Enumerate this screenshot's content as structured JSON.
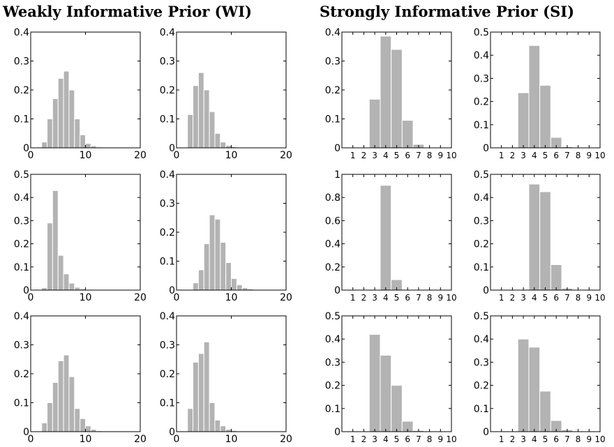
{
  "headings": {
    "weakly": "Weakly Informative Prior (WI)",
    "strongly": "Strongly Informative Prior (SI)"
  },
  "colors": {
    "bar": "#b3b3b3",
    "bar_edge": "#ffffff",
    "axis": "#000000",
    "background": "#ffffff"
  },
  "chart_data": [
    {
      "type": "bar",
      "group": "WI",
      "row": 1,
      "col": 1,
      "xlim": [
        0,
        20
      ],
      "xticks": [
        0,
        10,
        20
      ],
      "ylim": [
        0,
        0.4
      ],
      "yticks": [
        0,
        0.1,
        0.2,
        0.3,
        0.4
      ],
      "ytick_labels": [
        "0",
        "0.1",
        "0.2",
        "0.3",
        "0.4"
      ],
      "bin_edges": [
        2,
        3,
        4,
        5,
        6,
        7,
        8,
        9,
        10,
        11,
        12,
        13,
        14
      ],
      "values": [
        0.02,
        0.1,
        0.17,
        0.24,
        0.265,
        0.2,
        0.1,
        0.045,
        0.015,
        0.007,
        0.003,
        0.001
      ]
    },
    {
      "type": "bar",
      "group": "WI",
      "row": 1,
      "col": 2,
      "xlim": [
        0,
        20
      ],
      "xticks": [
        0,
        10,
        20
      ],
      "ylim": [
        0,
        0.4
      ],
      "yticks": [
        0,
        0.1,
        0.2,
        0.3,
        0.4
      ],
      "ytick_labels": [
        "0",
        "0.1",
        "0.2",
        "0.3",
        "0.4"
      ],
      "bin_edges": [
        2,
        3,
        4,
        5,
        6,
        7,
        8,
        9,
        10,
        11,
        12,
        13
      ],
      "values": [
        0.115,
        0.215,
        0.26,
        0.2,
        0.125,
        0.05,
        0.02,
        0.008,
        0.004,
        0.002,
        0.001
      ]
    },
    {
      "type": "bar",
      "group": "SI",
      "row": 1,
      "col": 3,
      "xlim": [
        0,
        10
      ],
      "xticks": [
        1,
        2,
        3,
        4,
        5,
        6,
        7,
        8,
        9,
        10
      ],
      "ylim": [
        0,
        0.4
      ],
      "yticks": [
        0,
        0.1,
        0.2,
        0.3,
        0.4
      ],
      "ytick_labels": [
        "0",
        "0.1",
        "0.2",
        "0.3",
        "0.4"
      ],
      "bin_edges": [
        2.5,
        3.5,
        4.5,
        5.5,
        6.5,
        7.5,
        8.5
      ],
      "values": [
        0.168,
        0.386,
        0.34,
        0.095,
        0.012,
        0.002
      ]
    },
    {
      "type": "bar",
      "group": "SI",
      "row": 1,
      "col": 4,
      "xlim": [
        0,
        10
      ],
      "xticks": [
        1,
        2,
        3,
        4,
        5,
        6,
        7,
        8,
        9,
        10
      ],
      "ylim": [
        0,
        0.5
      ],
      "yticks": [
        0,
        0.1,
        0.2,
        0.3,
        0.4,
        0.5
      ],
      "ytick_labels": [
        "0",
        "0.1",
        "0.2",
        "0.3",
        "0.4",
        "0.5"
      ],
      "bin_edges": [
        2.5,
        3.5,
        4.5,
        5.5,
        6.5,
        7.5,
        8.5
      ],
      "values": [
        0.238,
        0.442,
        0.27,
        0.045,
        0.005,
        0.001
      ]
    },
    {
      "type": "bar",
      "group": "WI",
      "row": 2,
      "col": 1,
      "xlim": [
        0,
        20
      ],
      "xticks": [
        0,
        10,
        20
      ],
      "ylim": [
        0,
        0.5
      ],
      "yticks": [
        0,
        0.1,
        0.2,
        0.3,
        0.4,
        0.5
      ],
      "ytick_labels": [
        "0",
        "0.1",
        "0.2",
        "0.3",
        "0.4",
        "0.5"
      ],
      "bin_edges": [
        2,
        3,
        4,
        5,
        6,
        7,
        8,
        9,
        10,
        11,
        12,
        13,
        14,
        15,
        16,
        17,
        18,
        19,
        20
      ],
      "values": [
        0.01,
        0.29,
        0.43,
        0.15,
        0.07,
        0.03,
        0.012,
        0.006,
        0.003,
        0.002,
        0.001,
        0.001,
        0.001,
        0.001,
        0.001,
        0.001,
        0.001,
        0.001
      ]
    },
    {
      "type": "bar",
      "group": "WI",
      "row": 2,
      "col": 2,
      "xlim": [
        0,
        20
      ],
      "xticks": [
        0,
        10,
        20
      ],
      "ylim": [
        0,
        0.4
      ],
      "yticks": [
        0,
        0.1,
        0.2,
        0.3,
        0.4
      ],
      "ytick_labels": [
        "0",
        "0.1",
        "0.2",
        "0.3",
        "0.4"
      ],
      "bin_edges": [
        3,
        4,
        5,
        6,
        7,
        8,
        9,
        10,
        11,
        12,
        13,
        14,
        15,
        16
      ],
      "values": [
        0.025,
        0.07,
        0.16,
        0.26,
        0.245,
        0.165,
        0.095,
        0.04,
        0.018,
        0.008,
        0.004,
        0.002,
        0.001
      ]
    },
    {
      "type": "bar",
      "group": "SI",
      "row": 2,
      "col": 3,
      "xlim": [
        0,
        10
      ],
      "xticks": [
        1,
        2,
        3,
        4,
        5,
        6,
        7,
        8,
        9,
        10
      ],
      "ylim": [
        0,
        1
      ],
      "yticks": [
        0,
        0.2,
        0.4,
        0.6,
        0.8,
        1
      ],
      "ytick_labels": [
        "0",
        "0.2",
        "0.4",
        "0.6",
        "0.8",
        "1"
      ],
      "bin_edges": [
        3.5,
        4.5,
        5.5,
        6.5,
        7.5,
        8.5
      ],
      "values": [
        0.905,
        0.09,
        0.004,
        0.001,
        0.001
      ]
    },
    {
      "type": "bar",
      "group": "SI",
      "row": 2,
      "col": 4,
      "xlim": [
        0,
        10
      ],
      "xticks": [
        1,
        2,
        3,
        4,
        5,
        6,
        7,
        8,
        9,
        10
      ],
      "ylim": [
        0,
        0.5
      ],
      "yticks": [
        0,
        0.1,
        0.2,
        0.3,
        0.4,
        0.5
      ],
      "ytick_labels": [
        "0",
        "0.1",
        "0.2",
        "0.3",
        "0.4",
        "0.5"
      ],
      "bin_edges": [
        3.5,
        4.5,
        5.5,
        6.5,
        7.5,
        8.5,
        9.5
      ],
      "values": [
        0.458,
        0.425,
        0.11,
        0.008,
        0.002,
        0.001
      ]
    },
    {
      "type": "bar",
      "group": "WI",
      "row": 3,
      "col": 1,
      "xlim": [
        0,
        20
      ],
      "xticks": [
        0,
        10,
        20
      ],
      "ylim": [
        0,
        0.4
      ],
      "yticks": [
        0,
        0.1,
        0.2,
        0.3,
        0.4
      ],
      "ytick_labels": [
        "0",
        "0.1",
        "0.2",
        "0.3",
        "0.4"
      ],
      "bin_edges": [
        2,
        3,
        4,
        5,
        6,
        7,
        8,
        9,
        10,
        11,
        12,
        13,
        14
      ],
      "values": [
        0.03,
        0.1,
        0.17,
        0.245,
        0.265,
        0.19,
        0.08,
        0.045,
        0.02,
        0.008,
        0.003,
        0.001
      ]
    },
    {
      "type": "bar",
      "group": "WI",
      "row": 3,
      "col": 2,
      "xlim": [
        0,
        20
      ],
      "xticks": [
        0,
        10,
        20
      ],
      "ylim": [
        0,
        0.4
      ],
      "yticks": [
        0,
        0.1,
        0.2,
        0.3,
        0.4
      ],
      "ytick_labels": [
        "0",
        "0.1",
        "0.2",
        "0.3",
        "0.4"
      ],
      "bin_edges": [
        2,
        3,
        4,
        5,
        6,
        7,
        8,
        9,
        10,
        11,
        12,
        13
      ],
      "values": [
        0.08,
        0.24,
        0.27,
        0.31,
        0.1,
        0.04,
        0.02,
        0.008,
        0.004,
        0.002,
        0.001
      ]
    },
    {
      "type": "bar",
      "group": "SI",
      "row": 3,
      "col": 3,
      "xlim": [
        0,
        10
      ],
      "xticks": [
        1,
        2,
        3,
        4,
        5,
        6,
        7,
        8,
        9,
        10
      ],
      "ylim": [
        0,
        0.5
      ],
      "yticks": [
        0,
        0.1,
        0.2,
        0.3,
        0.4,
        0.5
      ],
      "ytick_labels": [
        "0",
        "0.1",
        "0.2",
        "0.3",
        "0.4",
        "0.5"
      ],
      "bin_edges": [
        2.5,
        3.5,
        4.5,
        5.5,
        6.5,
        7.5,
        8.5
      ],
      "values": [
        0.42,
        0.33,
        0.2,
        0.045,
        0.005,
        0.001
      ]
    },
    {
      "type": "bar",
      "group": "SI",
      "row": 3,
      "col": 4,
      "xlim": [
        0,
        10
      ],
      "xticks": [
        1,
        2,
        3,
        4,
        5,
        6,
        7,
        8,
        9,
        10
      ],
      "ylim": [
        0,
        0.5
      ],
      "yticks": [
        0,
        0.1,
        0.2,
        0.3,
        0.4,
        0.5
      ],
      "ytick_labels": [
        "0",
        "0.1",
        "0.2",
        "0.3",
        "0.4",
        "0.5"
      ],
      "bin_edges": [
        1.5,
        2.5,
        3.5,
        4.5,
        5.5,
        6.5,
        7.5,
        8.5
      ],
      "values": [
        0.003,
        0.4,
        0.365,
        0.175,
        0.048,
        0.008,
        0.001
      ]
    }
  ]
}
